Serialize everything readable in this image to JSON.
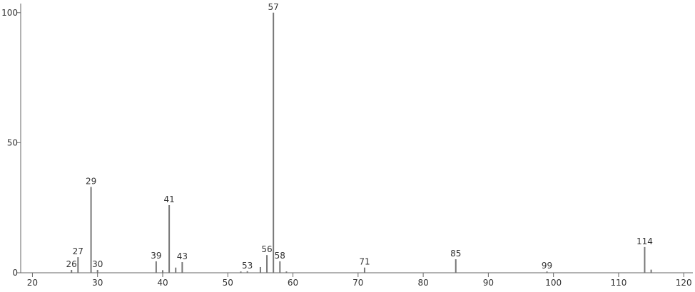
{
  "chart_data": {
    "type": "stem",
    "color": "#777777",
    "x": [
      26,
      27,
      29,
      30,
      39,
      40,
      41,
      42,
      43,
      52,
      53,
      55,
      56,
      57,
      58,
      59,
      71,
      85,
      99,
      114,
      115
    ],
    "values": [
      1.1,
      6,
      33,
      1.1,
      4.4,
      1,
      26,
      2,
      4.1,
      0.5,
      0.6,
      2.2,
      6.8,
      100,
      4.4,
      0.5,
      2,
      5.2,
      0.5,
      9.9,
      1.2
    ],
    "peak_labels": [
      26,
      27,
      29,
      30,
      39,
      41,
      43,
      53,
      56,
      57,
      58,
      71,
      85,
      99,
      114
    ],
    "xlim": [
      18.2,
      121.4
    ],
    "ylim": [
      0,
      103.5
    ],
    "xticks": [
      20,
      30,
      40,
      50,
      60,
      70,
      80,
      90,
      100,
      110,
      120
    ],
    "yticks": [
      0,
      50,
      100
    ]
  }
}
